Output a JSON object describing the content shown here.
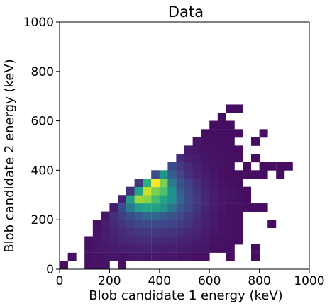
{
  "chart_data": {
    "type": "heatmap",
    "title": "Data",
    "xlabel": "Blob candidate 1 energy (keV)",
    "ylabel": "Blob candidate 2 energy (keV)",
    "xlim": [
      0,
      1000
    ],
    "ylim": [
      0,
      1000
    ],
    "x_ticks": [
      0,
      200,
      400,
      600,
      800,
      1000
    ],
    "y_ticks": [
      0,
      200,
      400,
      600,
      800,
      1000
    ],
    "x_tick_labels": [
      "0",
      "200",
      "400",
      "600",
      "800",
      "1000"
    ],
    "y_tick_labels": [
      "0",
      "200",
      "400",
      "600",
      "800",
      "1000"
    ],
    "bin_width": 33.3,
    "grid": false,
    "colormap": "viridis",
    "bins": [
      {
        "x": 0,
        "y": 0,
        "v": 0.05
      },
      {
        "x": 33,
        "y": 33,
        "v": 0.05
      },
      {
        "x": 100,
        "y": 0,
        "v": 0.06
      },
      {
        "x": 133,
        "y": 0,
        "v": 0.07
      },
      {
        "x": 167,
        "y": 0,
        "v": 0.07
      },
      {
        "x": 233,
        "y": 0,
        "v": 0.06
      },
      {
        "x": 100,
        "y": 33,
        "v": 0.06
      },
      {
        "x": 133,
        "y": 33,
        "v": 0.07
      },
      {
        "x": 167,
        "y": 33,
        "v": 0.07
      },
      {
        "x": 200,
        "y": 33,
        "v": 0.08
      },
      {
        "x": 233,
        "y": 33,
        "v": 0.07
      },
      {
        "x": 267,
        "y": 33,
        "v": 0.08
      },
      {
        "x": 300,
        "y": 33,
        "v": 0.09
      },
      {
        "x": 333,
        "y": 33,
        "v": 0.08
      },
      {
        "x": 367,
        "y": 33,
        "v": 0.09
      },
      {
        "x": 400,
        "y": 33,
        "v": 0.08
      },
      {
        "x": 433,
        "y": 33,
        "v": 0.08
      },
      {
        "x": 467,
        "y": 33,
        "v": 0.07
      },
      {
        "x": 500,
        "y": 33,
        "v": 0.07
      },
      {
        "x": 533,
        "y": 33,
        "v": 0.06
      },
      {
        "x": 567,
        "y": 33,
        "v": 0.06
      },
      {
        "x": 667,
        "y": 33,
        "v": 0.05
      },
      {
        "x": 767,
        "y": 33,
        "v": 0.05
      },
      {
        "x": 100,
        "y": 67,
        "v": 0.07
      },
      {
        "x": 133,
        "y": 67,
        "v": 0.08
      },
      {
        "x": 167,
        "y": 67,
        "v": 0.09
      },
      {
        "x": 200,
        "y": 67,
        "v": 0.1
      },
      {
        "x": 233,
        "y": 67,
        "v": 0.11
      },
      {
        "x": 267,
        "y": 67,
        "v": 0.11
      },
      {
        "x": 300,
        "y": 67,
        "v": 0.12
      },
      {
        "x": 333,
        "y": 67,
        "v": 0.12
      },
      {
        "x": 367,
        "y": 67,
        "v": 0.12
      },
      {
        "x": 400,
        "y": 67,
        "v": 0.11
      },
      {
        "x": 433,
        "y": 67,
        "v": 0.11
      },
      {
        "x": 467,
        "y": 67,
        "v": 0.1
      },
      {
        "x": 500,
        "y": 67,
        "v": 0.09
      },
      {
        "x": 533,
        "y": 67,
        "v": 0.08
      },
      {
        "x": 567,
        "y": 67,
        "v": 0.08
      },
      {
        "x": 600,
        "y": 67,
        "v": 0.06
      },
      {
        "x": 633,
        "y": 67,
        "v": 0.06
      },
      {
        "x": 667,
        "y": 67,
        "v": 0.05
      },
      {
        "x": 767,
        "y": 67,
        "v": 0.05
      },
      {
        "x": 100,
        "y": 100,
        "v": 0.06
      },
      {
        "x": 133,
        "y": 100,
        "v": 0.08
      },
      {
        "x": 167,
        "y": 100,
        "v": 0.1
      },
      {
        "x": 200,
        "y": 100,
        "v": 0.12
      },
      {
        "x": 233,
        "y": 100,
        "v": 0.14
      },
      {
        "x": 267,
        "y": 100,
        "v": 0.15
      },
      {
        "x": 300,
        "y": 100,
        "v": 0.16
      },
      {
        "x": 333,
        "y": 100,
        "v": 0.16
      },
      {
        "x": 367,
        "y": 100,
        "v": 0.16
      },
      {
        "x": 400,
        "y": 100,
        "v": 0.15
      },
      {
        "x": 433,
        "y": 100,
        "v": 0.14
      },
      {
        "x": 467,
        "y": 100,
        "v": 0.13
      },
      {
        "x": 500,
        "y": 100,
        "v": 0.12
      },
      {
        "x": 533,
        "y": 100,
        "v": 0.1
      },
      {
        "x": 567,
        "y": 100,
        "v": 0.09
      },
      {
        "x": 600,
        "y": 100,
        "v": 0.07
      },
      {
        "x": 633,
        "y": 100,
        "v": 0.06
      },
      {
        "x": 667,
        "y": 100,
        "v": 0.06
      },
      {
        "x": 700,
        "y": 100,
        "v": 0.05
      },
      {
        "x": 133,
        "y": 133,
        "v": 0.07
      },
      {
        "x": 167,
        "y": 133,
        "v": 0.1
      },
      {
        "x": 200,
        "y": 133,
        "v": 0.13
      },
      {
        "x": 233,
        "y": 133,
        "v": 0.16
      },
      {
        "x": 267,
        "y": 133,
        "v": 0.18
      },
      {
        "x": 300,
        "y": 133,
        "v": 0.2
      },
      {
        "x": 333,
        "y": 133,
        "v": 0.21
      },
      {
        "x": 367,
        "y": 133,
        "v": 0.21
      },
      {
        "x": 400,
        "y": 133,
        "v": 0.2
      },
      {
        "x": 433,
        "y": 133,
        "v": 0.19
      },
      {
        "x": 467,
        "y": 133,
        "v": 0.17
      },
      {
        "x": 500,
        "y": 133,
        "v": 0.15
      },
      {
        "x": 533,
        "y": 133,
        "v": 0.13
      },
      {
        "x": 567,
        "y": 133,
        "v": 0.1
      },
      {
        "x": 600,
        "y": 133,
        "v": 0.08
      },
      {
        "x": 633,
        "y": 133,
        "v": 0.07
      },
      {
        "x": 667,
        "y": 133,
        "v": 0.06
      },
      {
        "x": 700,
        "y": 133,
        "v": 0.05
      },
      {
        "x": 133,
        "y": 167,
        "v": 0.06
      },
      {
        "x": 167,
        "y": 167,
        "v": 0.11
      },
      {
        "x": 200,
        "y": 167,
        "v": 0.15
      },
      {
        "x": 233,
        "y": 167,
        "v": 0.19
      },
      {
        "x": 267,
        "y": 167,
        "v": 0.23
      },
      {
        "x": 300,
        "y": 167,
        "v": 0.26
      },
      {
        "x": 333,
        "y": 167,
        "v": 0.28
      },
      {
        "x": 367,
        "y": 167,
        "v": 0.28
      },
      {
        "x": 400,
        "y": 167,
        "v": 0.27
      },
      {
        "x": 433,
        "y": 167,
        "v": 0.25
      },
      {
        "x": 467,
        "y": 167,
        "v": 0.22
      },
      {
        "x": 500,
        "y": 167,
        "v": 0.19
      },
      {
        "x": 533,
        "y": 167,
        "v": 0.15
      },
      {
        "x": 567,
        "y": 167,
        "v": 0.12
      },
      {
        "x": 600,
        "y": 167,
        "v": 0.09
      },
      {
        "x": 633,
        "y": 167,
        "v": 0.07
      },
      {
        "x": 667,
        "y": 167,
        "v": 0.06
      },
      {
        "x": 700,
        "y": 167,
        "v": 0.05
      },
      {
        "x": 833,
        "y": 167,
        "v": 0.05
      },
      {
        "x": 167,
        "y": 200,
        "v": 0.08
      },
      {
        "x": 200,
        "y": 200,
        "v": 0.17
      },
      {
        "x": 233,
        "y": 200,
        "v": 0.23
      },
      {
        "x": 267,
        "y": 200,
        "v": 0.3
      },
      {
        "x": 300,
        "y": 200,
        "v": 0.36
      },
      {
        "x": 333,
        "y": 200,
        "v": 0.4
      },
      {
        "x": 367,
        "y": 200,
        "v": 0.4
      },
      {
        "x": 400,
        "y": 200,
        "v": 0.37
      },
      {
        "x": 433,
        "y": 200,
        "v": 0.33
      },
      {
        "x": 467,
        "y": 200,
        "v": 0.28
      },
      {
        "x": 500,
        "y": 200,
        "v": 0.22
      },
      {
        "x": 533,
        "y": 200,
        "v": 0.17
      },
      {
        "x": 567,
        "y": 200,
        "v": 0.12
      },
      {
        "x": 600,
        "y": 200,
        "v": 0.09
      },
      {
        "x": 633,
        "y": 200,
        "v": 0.07
      },
      {
        "x": 667,
        "y": 200,
        "v": 0.06
      },
      {
        "x": 700,
        "y": 200,
        "v": 0.05
      },
      {
        "x": 200,
        "y": 233,
        "v": 0.1
      },
      {
        "x": 233,
        "y": 233,
        "v": 0.28
      },
      {
        "x": 267,
        "y": 233,
        "v": 0.45
      },
      {
        "x": 300,
        "y": 233,
        "v": 0.55
      },
      {
        "x": 333,
        "y": 233,
        "v": 0.6
      },
      {
        "x": 367,
        "y": 233,
        "v": 0.58
      },
      {
        "x": 400,
        "y": 233,
        "v": 0.52
      },
      {
        "x": 433,
        "y": 233,
        "v": 0.44
      },
      {
        "x": 467,
        "y": 233,
        "v": 0.36
      },
      {
        "x": 500,
        "y": 233,
        "v": 0.27
      },
      {
        "x": 533,
        "y": 233,
        "v": 0.2
      },
      {
        "x": 567,
        "y": 233,
        "v": 0.14
      },
      {
        "x": 600,
        "y": 233,
        "v": 0.1
      },
      {
        "x": 633,
        "y": 233,
        "v": 0.08
      },
      {
        "x": 667,
        "y": 233,
        "v": 0.06
      },
      {
        "x": 700,
        "y": 233,
        "v": 0.06
      },
      {
        "x": 733,
        "y": 233,
        "v": 0.05
      },
      {
        "x": 767,
        "y": 233,
        "v": 0.05
      },
      {
        "x": 233,
        "y": 267,
        "v": 0.12
      },
      {
        "x": 267,
        "y": 267,
        "v": 0.55
      },
      {
        "x": 300,
        "y": 267,
        "v": 0.85
      },
      {
        "x": 333,
        "y": 267,
        "v": 0.82
      },
      {
        "x": 367,
        "y": 267,
        "v": 0.7
      },
      {
        "x": 400,
        "y": 267,
        "v": 0.6
      },
      {
        "x": 433,
        "y": 267,
        "v": 0.5
      },
      {
        "x": 467,
        "y": 267,
        "v": 0.4
      },
      {
        "x": 500,
        "y": 267,
        "v": 0.3
      },
      {
        "x": 533,
        "y": 267,
        "v": 0.22
      },
      {
        "x": 567,
        "y": 267,
        "v": 0.15
      },
      {
        "x": 600,
        "y": 267,
        "v": 0.1
      },
      {
        "x": 633,
        "y": 267,
        "v": 0.08
      },
      {
        "x": 667,
        "y": 267,
        "v": 0.07
      },
      {
        "x": 700,
        "y": 267,
        "v": 0.06
      },
      {
        "x": 733,
        "y": 267,
        "v": 0.05
      },
      {
        "x": 267,
        "y": 300,
        "v": 0.18
      },
      {
        "x": 300,
        "y": 300,
        "v": 0.6
      },
      {
        "x": 333,
        "y": 300,
        "v": 0.92
      },
      {
        "x": 367,
        "y": 300,
        "v": 0.8
      },
      {
        "x": 400,
        "y": 300,
        "v": 0.72
      },
      {
        "x": 433,
        "y": 300,
        "v": 0.5
      },
      {
        "x": 467,
        "y": 300,
        "v": 0.38
      },
      {
        "x": 500,
        "y": 300,
        "v": 0.28
      },
      {
        "x": 533,
        "y": 300,
        "v": 0.2
      },
      {
        "x": 567,
        "y": 300,
        "v": 0.14
      },
      {
        "x": 600,
        "y": 300,
        "v": 0.1
      },
      {
        "x": 633,
        "y": 300,
        "v": 0.08
      },
      {
        "x": 667,
        "y": 300,
        "v": 0.07
      },
      {
        "x": 700,
        "y": 300,
        "v": 0.06
      },
      {
        "x": 733,
        "y": 300,
        "v": 0.05
      },
      {
        "x": 300,
        "y": 333,
        "v": 0.2
      },
      {
        "x": 333,
        "y": 333,
        "v": 0.65
      },
      {
        "x": 367,
        "y": 333,
        "v": 1.0
      },
      {
        "x": 400,
        "y": 333,
        "v": 0.8
      },
      {
        "x": 433,
        "y": 333,
        "v": 0.45
      },
      {
        "x": 467,
        "y": 333,
        "v": 0.32
      },
      {
        "x": 500,
        "y": 333,
        "v": 0.24
      },
      {
        "x": 533,
        "y": 333,
        "v": 0.17
      },
      {
        "x": 567,
        "y": 333,
        "v": 0.12
      },
      {
        "x": 600,
        "y": 333,
        "v": 0.09
      },
      {
        "x": 633,
        "y": 333,
        "v": 0.07
      },
      {
        "x": 667,
        "y": 333,
        "v": 0.06
      },
      {
        "x": 700,
        "y": 333,
        "v": 0.05
      },
      {
        "x": 367,
        "y": 367,
        "v": 0.3
      },
      {
        "x": 400,
        "y": 367,
        "v": 0.52
      },
      {
        "x": 433,
        "y": 367,
        "v": 0.38
      },
      {
        "x": 467,
        "y": 367,
        "v": 0.26
      },
      {
        "x": 500,
        "y": 367,
        "v": 0.18
      },
      {
        "x": 533,
        "y": 367,
        "v": 0.13
      },
      {
        "x": 567,
        "y": 367,
        "v": 0.1
      },
      {
        "x": 600,
        "y": 367,
        "v": 0.08
      },
      {
        "x": 633,
        "y": 367,
        "v": 0.06
      },
      {
        "x": 667,
        "y": 367,
        "v": 0.05
      },
      {
        "x": 700,
        "y": 367,
        "v": 0.05
      },
      {
        "x": 733,
        "y": 367,
        "v": 0.06
      },
      {
        "x": 767,
        "y": 367,
        "v": 0.05
      },
      {
        "x": 800,
        "y": 367,
        "v": 0.05
      },
      {
        "x": 867,
        "y": 367,
        "v": 0.05
      },
      {
        "x": 433,
        "y": 400,
        "v": 0.3
      },
      {
        "x": 467,
        "y": 400,
        "v": 0.22
      },
      {
        "x": 500,
        "y": 400,
        "v": 0.16
      },
      {
        "x": 533,
        "y": 400,
        "v": 0.12
      },
      {
        "x": 567,
        "y": 400,
        "v": 0.09
      },
      {
        "x": 600,
        "y": 400,
        "v": 0.07
      },
      {
        "x": 633,
        "y": 400,
        "v": 0.06
      },
      {
        "x": 667,
        "y": 400,
        "v": 0.05
      },
      {
        "x": 733,
        "y": 400,
        "v": 0.05
      },
      {
        "x": 467,
        "y": 433,
        "v": 0.16
      },
      {
        "x": 500,
        "y": 433,
        "v": 0.12
      },
      {
        "x": 533,
        "y": 433,
        "v": 0.1
      },
      {
        "x": 567,
        "y": 433,
        "v": 0.08
      },
      {
        "x": 600,
        "y": 433,
        "v": 0.07
      },
      {
        "x": 633,
        "y": 433,
        "v": 0.06
      },
      {
        "x": 667,
        "y": 433,
        "v": 0.05
      },
      {
        "x": 700,
        "y": 433,
        "v": 0.05
      },
      {
        "x": 767,
        "y": 433,
        "v": 0.05
      },
      {
        "x": 500,
        "y": 467,
        "v": 0.1
      },
      {
        "x": 533,
        "y": 467,
        "v": 0.08
      },
      {
        "x": 567,
        "y": 467,
        "v": 0.07
      },
      {
        "x": 600,
        "y": 467,
        "v": 0.06
      },
      {
        "x": 633,
        "y": 467,
        "v": 0.06
      },
      {
        "x": 667,
        "y": 467,
        "v": 0.05
      },
      {
        "x": 700,
        "y": 467,
        "v": 0.05
      },
      {
        "x": 533,
        "y": 500,
        "v": 0.07
      },
      {
        "x": 567,
        "y": 500,
        "v": 0.06
      },
      {
        "x": 600,
        "y": 500,
        "v": 0.06
      },
      {
        "x": 633,
        "y": 500,
        "v": 0.05
      },
      {
        "x": 667,
        "y": 500,
        "v": 0.05
      },
      {
        "x": 767,
        "y": 500,
        "v": 0.05
      },
      {
        "x": 567,
        "y": 533,
        "v": 0.05
      },
      {
        "x": 600,
        "y": 533,
        "v": 0.05
      },
      {
        "x": 633,
        "y": 533,
        "v": 0.05
      },
      {
        "x": 667,
        "y": 533,
        "v": 0.05
      },
      {
        "x": 700,
        "y": 533,
        "v": 0.05
      },
      {
        "x": 600,
        "y": 567,
        "v": 0.05
      },
      {
        "x": 667,
        "y": 567,
        "v": 0.05
      },
      {
        "x": 633,
        "y": 567,
        "v": 0.05
      },
      {
        "x": 633,
        "y": 600,
        "v": 0.05
      },
      {
        "x": 667,
        "y": 633,
        "v": 0.05
      },
      {
        "x": 700,
        "y": 633,
        "v": 0.05
      },
      {
        "x": 800,
        "y": 533,
        "v": 0.05
      },
      {
        "x": 800,
        "y": 400,
        "v": 0.05
      },
      {
        "x": 833,
        "y": 400,
        "v": 0.05
      },
      {
        "x": 867,
        "y": 400,
        "v": 0.05
      },
      {
        "x": 900,
        "y": 400,
        "v": 0.05
      },
      {
        "x": 800,
        "y": 233,
        "v": 0.05
      }
    ]
  }
}
